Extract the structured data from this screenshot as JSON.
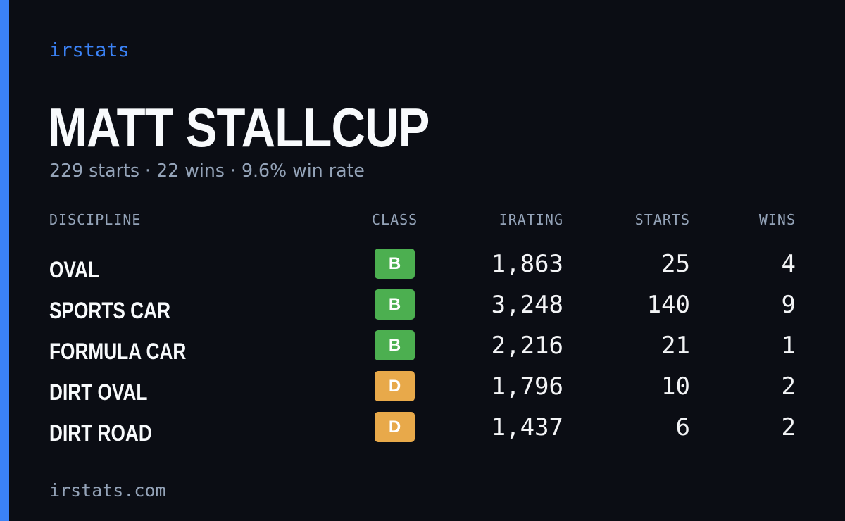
{
  "brand": "irstats",
  "player": {
    "name": "MATT STALLCUP",
    "summary": "229 starts · 22 wins · 9.6% win rate"
  },
  "table": {
    "headers": {
      "discipline": "DISCIPLINE",
      "class": "CLASS",
      "irating": "IRATING",
      "starts": "STARTS",
      "wins": "WINS"
    },
    "rows": [
      {
        "discipline": "OVAL",
        "class": "B",
        "irating": "1,863",
        "starts": "25",
        "wins": "4"
      },
      {
        "discipline": "SPORTS CAR",
        "class": "B",
        "irating": "3,248",
        "starts": "140",
        "wins": "9"
      },
      {
        "discipline": "FORMULA CAR",
        "class": "B",
        "irating": "2,216",
        "starts": "21",
        "wins": "1"
      },
      {
        "discipline": "DIRT OVAL",
        "class": "D",
        "irating": "1,796",
        "starts": "10",
        "wins": "2"
      },
      {
        "discipline": "DIRT ROAD",
        "class": "D",
        "irating": "1,437",
        "starts": "6",
        "wins": "2"
      }
    ]
  },
  "footer": "irstats.com",
  "colors": {
    "accent": "#3b82f6",
    "background": "#0b0d14",
    "class_B": "#4caf50",
    "class_D": "#e8a94a"
  }
}
